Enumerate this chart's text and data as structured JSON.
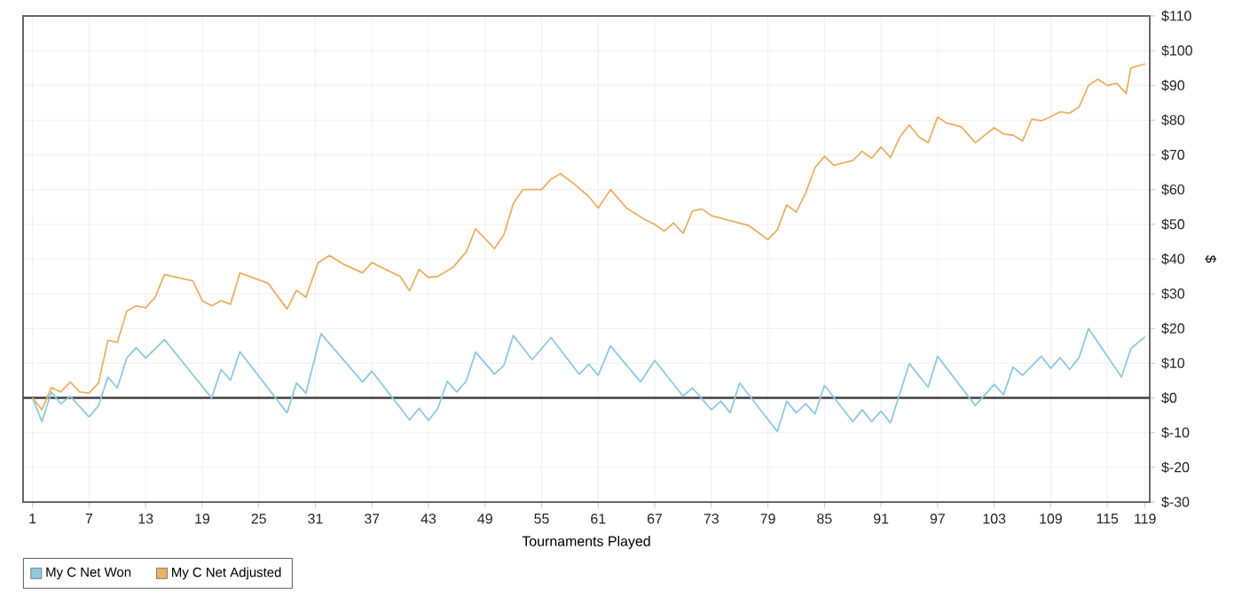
{
  "chart_data": {
    "type": "line",
    "xlabel": "Tournaments Played",
    "ylabel": "$",
    "xlim": [
      0,
      119.5
    ],
    "ylim": [
      -30,
      110
    ],
    "xticks": [
      1,
      7,
      13,
      19,
      25,
      31,
      37,
      43,
      49,
      55,
      61,
      67,
      73,
      79,
      85,
      91,
      97,
      103,
      109,
      115,
      119
    ],
    "yticks": [
      {
        "value": -30,
        "label": "$-30"
      },
      {
        "value": -20,
        "label": "$-20"
      },
      {
        "value": -10,
        "label": "$-10"
      },
      {
        "value": 0,
        "label": "$0"
      },
      {
        "value": 10,
        "label": "$10"
      },
      {
        "value": 20,
        "label": "$20"
      },
      {
        "value": 30,
        "label": "$30"
      },
      {
        "value": 40,
        "label": "$40"
      },
      {
        "value": 50,
        "label": "$50"
      },
      {
        "value": 60,
        "label": "$60"
      },
      {
        "value": 70,
        "label": "$70"
      },
      {
        "value": 80,
        "label": "$80"
      },
      {
        "value": 90,
        "label": "$90"
      },
      {
        "value": 100,
        "label": "$100"
      },
      {
        "value": 110,
        "label": "$110"
      }
    ],
    "grid": true,
    "legend": "bottom left",
    "marker": "none",
    "line_style": "solid",
    "ref_lines": [
      {
        "axis": "y",
        "value": 0,
        "color": "#404040"
      }
    ],
    "series": [
      {
        "name": "My C Net Won",
        "color": "#8ec9e2",
        "x": [
          1,
          2,
          3,
          4,
          5,
          7,
          8,
          9,
          10,
          11,
          12,
          13,
          15,
          20,
          21,
          22,
          23,
          28,
          29,
          30,
          31.6,
          36,
          37,
          41,
          42,
          43,
          44,
          45,
          46,
          47,
          48,
          50,
          51,
          52,
          54,
          56,
          59,
          60,
          61,
          62.3,
          65.5,
          67,
          70,
          71,
          73,
          74,
          75,
          76,
          80,
          81,
          82,
          83,
          84,
          85,
          88,
          89,
          90,
          91,
          92,
          94,
          96,
          97,
          101,
          103,
          104,
          105,
          106,
          108,
          109,
          110,
          111,
          112,
          113,
          116.5,
          117.5,
          119
        ],
        "values": [
          0,
          -6.8,
          1.7,
          -1.7,
          0.5,
          -5.5,
          -2.2,
          6,
          2.9,
          11.5,
          14.5,
          11.5,
          16.8,
          0,
          8.2,
          5.1,
          13.3,
          -4.3,
          4.3,
          1.4,
          18.5,
          4.6,
          7.7,
          -6.3,
          -3,
          -6.5,
          -3,
          4.8,
          1.7,
          4.8,
          13.2,
          6.8,
          9.4,
          18,
          11,
          17.4,
          6.8,
          9.7,
          6.5,
          15,
          4.6,
          10.8,
          0.5,
          2.9,
          -3.4,
          -0.9,
          -4.3,
          4.3,
          -9.7,
          -0.9,
          -4.3,
          -1.7,
          -4.6,
          3.6,
          -6.8,
          -3.4,
          -6.8,
          -3.8,
          -7.2,
          9.9,
          3.1,
          12,
          -2.2,
          3.9,
          0.9,
          8.9,
          6.5,
          12,
          8.5,
          11.6,
          8.2,
          11.6,
          20,
          6,
          14.2,
          17.6
        ]
      },
      {
        "name": "My C Net Adjusted",
        "color": "#eab064",
        "x": [
          1,
          2,
          3,
          4,
          5,
          6,
          7,
          8,
          9,
          10,
          11,
          12,
          13,
          14,
          15,
          18,
          19,
          20,
          21,
          22,
          23,
          26,
          28,
          29,
          30,
          31.3,
          32.5,
          34,
          36,
          37,
          38,
          40,
          41,
          42,
          43,
          44,
          45.6,
          47,
          48,
          50,
          51,
          52,
          53,
          55,
          56,
          57,
          58.5,
          60,
          61,
          62.3,
          64,
          66,
          67,
          68,
          69,
          70,
          71,
          72,
          73,
          77,
          79,
          80,
          81,
          82,
          83,
          84,
          85,
          86,
          88,
          89,
          90,
          91,
          92,
          93,
          94,
          95,
          96,
          97,
          98,
          99.5,
          101,
          103,
          104,
          105,
          106,
          107,
          108,
          109,
          110,
          111,
          112,
          113,
          114,
          115,
          116,
          117,
          117.5,
          119
        ],
        "values": [
          0,
          -3.4,
          3,
          1.7,
          4.6,
          1.7,
          1.4,
          4.3,
          16.6,
          16,
          25,
          26.5,
          26,
          29,
          35.5,
          33.7,
          28,
          26.5,
          28,
          27,
          36,
          33,
          25.6,
          31,
          29,
          39,
          41,
          38.5,
          36,
          39,
          37.6,
          35,
          30.8,
          37,
          34.7,
          35,
          37.6,
          42,
          48.7,
          43,
          47,
          56,
          60,
          60,
          63,
          64.6,
          61.5,
          58,
          54.7,
          60,
          54.7,
          51.3,
          50,
          48,
          50.4,
          47.4,
          53.8,
          54.4,
          52.5,
          49.6,
          45.6,
          48.4,
          55.6,
          53.5,
          59,
          66.3,
          69.6,
          67,
          68.4,
          71,
          69,
          72.3,
          69.2,
          75.2,
          78.6,
          75.2,
          73.5,
          80.9,
          79.1,
          78.1,
          73.5,
          77.8,
          76,
          75.7,
          74,
          80.3,
          79.8,
          81,
          82.4,
          82,
          83.8,
          90,
          91.8,
          90,
          90.6,
          87.7,
          95,
          96.2
        ]
      }
    ]
  }
}
